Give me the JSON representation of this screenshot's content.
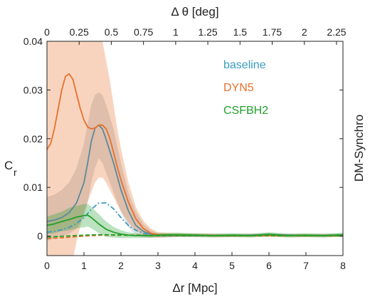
{
  "chart_data": {
    "type": "line",
    "xlabel": "Δr [Mpc]",
    "x2label": "Δ θ [deg]",
    "ylabel": "C",
    "ylabel_sub": "r",
    "side_label": "DM-Synchro",
    "xlim": [
      0,
      8
    ],
    "ylim": [
      -0.004,
      0.04
    ],
    "x2lim": [
      0,
      2.3
    ],
    "xticks": [
      0,
      1,
      2,
      3,
      4,
      5,
      6,
      7,
      8
    ],
    "xtick_labels": [
      "0",
      "1",
      "2",
      "3",
      "4",
      "5",
      "6",
      "7",
      "8"
    ],
    "yticks": [
      0,
      0.01,
      0.02,
      0.03,
      0.04
    ],
    "ytick_labels": [
      "0",
      "0.01",
      "0.02",
      "0.03",
      "0.04"
    ],
    "x2ticks": [
      0,
      0.25,
      0.5,
      0.75,
      1,
      1.25,
      1.5,
      1.75,
      2,
      2.25
    ],
    "x2tick_labels": [
      "0",
      "0.25",
      "0.5",
      "0.75",
      "1",
      "1.25",
      "1.5",
      "1.75",
      "2",
      "2.25"
    ],
    "grid": false,
    "legend_position": "top-right",
    "series": [
      {
        "name": "baseline",
        "color": "#3a9cc0",
        "style": "dashdot",
        "x": [
          0,
          0.2,
          0.4,
          0.6,
          0.8,
          1.0,
          1.2,
          1.4,
          1.6,
          1.8,
          2.0,
          2.2,
          2.4,
          2.6,
          2.8,
          3.0,
          3.5,
          4,
          5,
          6,
          7,
          8
        ],
        "y": [
          0.0008,
          0.001,
          0.0013,
          0.0018,
          0.0026,
          0.0038,
          0.0055,
          0.0068,
          0.0068,
          0.0056,
          0.0038,
          0.0022,
          0.0012,
          0.0006,
          0.0003,
          0.0002,
          0.0001,
          0.0001,
          0.0001,
          0.0001,
          0.0001,
          0.0001
        ]
      },
      {
        "name": "",
        "color": "#5a8a9a",
        "style": "solid",
        "x": [
          0,
          0.2,
          0.4,
          0.6,
          0.8,
          1.0,
          1.1,
          1.2,
          1.3,
          1.4,
          1.5,
          1.6,
          1.8,
          2.0,
          2.2,
          2.4,
          2.6,
          2.8,
          3.0,
          3.5,
          4,
          5,
          6,
          7,
          8
        ],
        "y": [
          0.003,
          0.0033,
          0.0038,
          0.0048,
          0.0068,
          0.011,
          0.015,
          0.0195,
          0.0222,
          0.0228,
          0.022,
          0.0198,
          0.015,
          0.0095,
          0.0052,
          0.0022,
          0.001,
          0.0004,
          0.0002,
          0.0001,
          0.0002,
          0.0001,
          0.0003,
          0.0001,
          0.0002
        ],
        "band_upper": [
          0.008,
          0.0085,
          0.0095,
          0.011,
          0.014,
          0.019,
          0.023,
          0.027,
          0.029,
          0.0295,
          0.029,
          0.027,
          0.022,
          0.015,
          0.009,
          0.005,
          0.0025,
          0.0012,
          0.0006,
          0.0004,
          0.0005,
          0.0004,
          0.0006,
          0.0004,
          0.0005
        ],
        "band_lower": [
          -0.001,
          -0.0005,
          0.0,
          0.0005,
          0.0015,
          0.004,
          0.007,
          0.011,
          0.014,
          0.016,
          0.015,
          0.013,
          0.009,
          0.005,
          0.0018,
          0.0003,
          -0.0003,
          -0.0004,
          -0.0003,
          -0.0002,
          -0.0001,
          -0.0002,
          0.0,
          -0.0002,
          -0.0001
        ]
      },
      {
        "name": "DYN5",
        "color": "#e8702a",
        "style": "solid",
        "x": [
          0,
          0.1,
          0.2,
          0.3,
          0.4,
          0.5,
          0.6,
          0.7,
          0.8,
          0.9,
          1.0,
          1.1,
          1.2,
          1.3,
          1.4,
          1.5,
          1.6,
          1.7,
          1.8,
          1.9,
          2.0,
          2.2,
          2.4,
          2.6,
          2.8,
          3.0,
          3.5,
          4,
          5,
          6,
          7,
          8
        ],
        "y": [
          0.0178,
          0.019,
          0.022,
          0.026,
          0.03,
          0.0328,
          0.0333,
          0.0322,
          0.0292,
          0.0262,
          0.0238,
          0.0224,
          0.022,
          0.0222,
          0.0228,
          0.0228,
          0.022,
          0.02,
          0.0172,
          0.0142,
          0.0115,
          0.007,
          0.0036,
          0.0016,
          0.0006,
          0.0003,
          0.0002,
          0.0002,
          0.0001,
          0.0001,
          0.0001,
          0.0001
        ],
        "band_upper": [
          0.048,
          0.05,
          0.05,
          0.05,
          0.05,
          0.05,
          0.05,
          0.05,
          0.05,
          0.05,
          0.05,
          0.048,
          0.046,
          0.044,
          0.042,
          0.04,
          0.036,
          0.032,
          0.027,
          0.022,
          0.018,
          0.011,
          0.006,
          0.0032,
          0.0016,
          0.0008,
          0.0006,
          0.0005,
          0.0004,
          0.0004,
          0.0004,
          0.0004
        ],
        "band_lower": [
          -0.01,
          -0.01,
          -0.01,
          -0.01,
          -0.01,
          -0.01,
          -0.008,
          -0.005,
          -0.001,
          0.002,
          0.005,
          0.007,
          0.009,
          0.011,
          0.012,
          0.012,
          0.011,
          0.0095,
          0.008,
          0.0065,
          0.005,
          0.0028,
          0.0012,
          0.0003,
          -0.0002,
          -0.0003,
          -0.0002,
          -0.0002,
          -0.0002,
          -0.0002,
          -0.0002,
          -0.0002
        ]
      },
      {
        "name": "",
        "color": "#e8702a",
        "style": "dashed",
        "x": [
          0,
          0.5,
          1,
          1.5,
          2,
          2.5,
          3,
          4,
          5,
          6,
          7,
          8
        ],
        "y": [
          -0.0005,
          -0.0003,
          0.0,
          0.0002,
          0.0002,
          0.0002,
          0.0001,
          0.0001,
          0.0001,
          0.0001,
          0.0001,
          0.0001
        ]
      },
      {
        "name": "CSFBH2",
        "color": "#22a02a",
        "style": "solid",
        "x": [
          0,
          0.2,
          0.4,
          0.6,
          0.8,
          1.0,
          1.1,
          1.2,
          1.4,
          1.6,
          1.8,
          2.0,
          2.2,
          2.4,
          2.6,
          2.8,
          3.0,
          3.5,
          4,
          4.5,
          5,
          5.5,
          6,
          6.5,
          7,
          7.5,
          8
        ],
        "y": [
          0.0022,
          0.0025,
          0.003,
          0.0034,
          0.0039,
          0.0042,
          0.0043,
          0.0038,
          0.0025,
          0.0014,
          0.0008,
          0.0004,
          0.0002,
          0.0001,
          0.0001,
          0.0001,
          0.0002,
          0.0003,
          0.0002,
          0.0001,
          0.0002,
          0.0001,
          0.0004,
          0.0001,
          0.0002,
          0.0001,
          0.0003
        ],
        "band_upper": [
          0.004,
          0.0045,
          0.005,
          0.0058,
          0.0062,
          0.0066,
          0.0066,
          0.006,
          0.0045,
          0.003,
          0.0019,
          0.0012,
          0.0008,
          0.0006,
          0.0005,
          0.0005,
          0.0006,
          0.0007,
          0.0006,
          0.0005,
          0.0006,
          0.0005,
          0.0008,
          0.0005,
          0.0006,
          0.0005,
          0.0007
        ],
        "band_lower": [
          0.0004,
          0.0006,
          0.001,
          0.0012,
          0.0016,
          0.0018,
          0.002,
          0.0016,
          0.0006,
          -0.0002,
          -0.0003,
          -0.0004,
          -0.0004,
          -0.0004,
          -0.0003,
          -0.0003,
          -0.0002,
          -0.0001,
          -0.0002,
          -0.0003,
          -0.0002,
          -0.0003,
          0.0,
          -0.0003,
          -0.0002,
          -0.0003,
          -0.0001
        ]
      },
      {
        "name": "",
        "color": "#22a02a",
        "style": "dashed",
        "x": [
          0,
          0.5,
          1,
          1.5,
          2,
          3,
          4,
          5,
          6,
          7,
          8
        ],
        "y": [
          -0.0002,
          0.0,
          0.0002,
          0.0003,
          0.0002,
          0.0001,
          0.0001,
          0.0001,
          0.0001,
          0.0001,
          0.0001
        ]
      }
    ]
  }
}
